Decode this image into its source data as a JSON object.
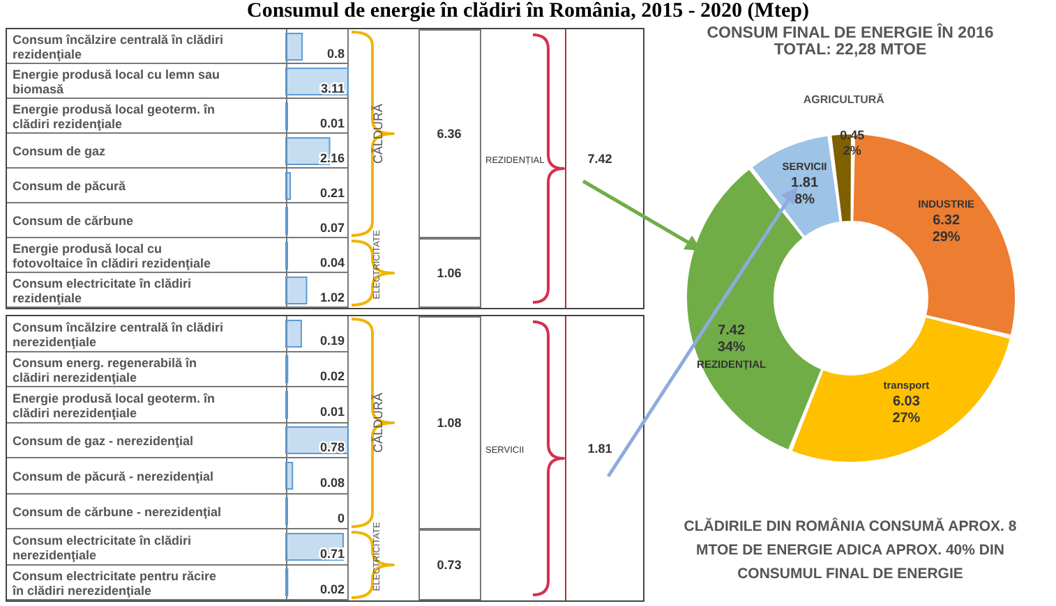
{
  "chart_data": [
    {
      "type": "bar",
      "orientation": "horizontal",
      "title": "Consumul de energie în clădiri în România, 2015 - 2020 (Mtep)",
      "categories": [
        "Consum încălzire centrală în clădiri rezidenţiale",
        "Energie produsă local cu lemn sau biomasă",
        "Energie produsă local geoterm. în clădiri rezidenţiale",
        "Consum de gaz",
        "Consum de păcură",
        "Consum de cărbune",
        "Energie produsă local cu fotovoltaice în clădiri rezidenţiale",
        "Consum electricitate în clădiri rezidenţiale"
      ],
      "values": [
        0.8,
        3.11,
        0.01,
        2.16,
        0.21,
        0.07,
        0.04,
        1.02
      ],
      "color": "#5b9bd5",
      "data_labels": true,
      "annotations": [
        "CĂLDURĂ",
        "6.36",
        "ELECTRICITATE",
        "1.06",
        "REZIDENȚIAL",
        "7.42"
      ]
    },
    {
      "type": "bar",
      "orientation": "horizontal",
      "categories": [
        "Consum încălzire centrală în clădiri nerezidenţiale",
        "Consum energ. regenerabilă în clădiri nerezidenţiale",
        "Energie produsă local geoterm. în clădiri nerezidenţiale",
        "Consum de gaz - nerezidenţial",
        "Consum de păcură - nerezidenţial",
        "Consum de cărbune - nerezidenţial",
        "Consum electricitate în clădiri nerezidenţiale",
        "Consum electricitate pentru răcire în clădiri nerezidenţiale"
      ],
      "values": [
        0.19,
        0.02,
        0.01,
        0.78,
        0.08,
        0,
        0.71,
        0.02
      ],
      "color": "#5b9bd5",
      "data_labels": true,
      "annotations": [
        "CĂLDURĂ",
        "1.08",
        "ELECTRICITATE",
        "0.73",
        "SERVICII",
        "1.81"
      ]
    },
    {
      "type": "donut",
      "title": "CONSUM FINAL DE ENERGIE ÎN 2016",
      "subtitle": "TOTAL: 22,28 MTOE",
      "categories": [
        "AGRICULTURĂ",
        "INDUSTRIE",
        "transport",
        "REZIDENȚIAL",
        "SERVICII"
      ],
      "values": [
        0.45,
        6.32,
        6.03,
        7.42,
        1.81
      ],
      "colors": [
        "#7f6000",
        "#ed7d31",
        "#ffc000",
        "#70ad47",
        "#9dc3e6"
      ],
      "value_labels": [
        "0.45\n2%",
        "6.32\n29%",
        "6.03\n27%",
        "7.42\n34%",
        "1.81\n8%"
      ],
      "legend": false,
      "annotations": [
        "CLĂDIRILE DIN ROMÂNIA CONSUMĂ APROX. 8 MTOE DE ENERGIE ADICA APROX. 40% DIN CONSUMUL FINAL DE ENERGIE"
      ]
    }
  ]
}
